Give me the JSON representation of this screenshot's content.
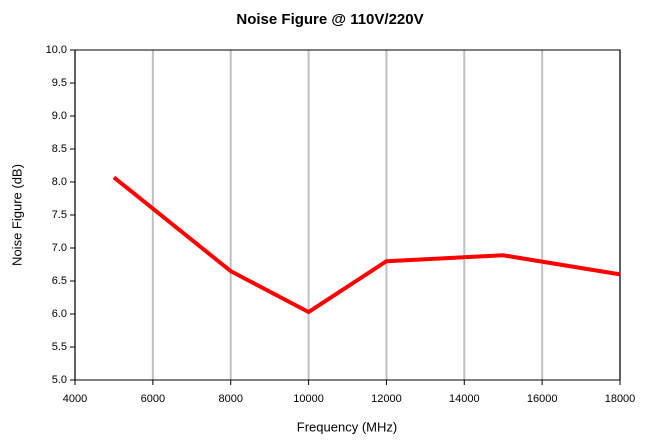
{
  "chart_data": {
    "type": "line",
    "title": "Noise Figure @ 110V/220V",
    "xlabel": "Frequency (MHz)",
    "ylabel": "Noise Figure (dB)",
    "x": [
      5000,
      8000,
      10000,
      12000,
      15000,
      18000
    ],
    "series": [
      {
        "color": "#ff0000",
        "values": [
          8.07,
          6.65,
          6.03,
          6.8,
          6.89,
          6.6
        ]
      }
    ],
    "xlim": [
      4000,
      18000
    ],
    "xticks": [
      4000,
      6000,
      8000,
      10000,
      12000,
      14000,
      16000,
      18000
    ],
    "ylim": [
      5,
      10
    ],
    "yticks": [
      {
        "value": 5,
        "label": "5.0"
      },
      {
        "value": 5.5,
        "label": "5.5"
      },
      {
        "value": 6,
        "label": "6.0"
      },
      {
        "value": 6.5,
        "label": "6.5"
      },
      {
        "value": 7,
        "label": "7.0"
      },
      {
        "value": 7.5,
        "label": "7.5"
      },
      {
        "value": 8,
        "label": "8.0"
      },
      {
        "value": 8.5,
        "label": "8.5"
      },
      {
        "value": 9,
        "label": "9.0"
      },
      {
        "value": 9.5,
        "label": "9.5"
      },
      {
        "value": 10,
        "label": "10.0"
      }
    ],
    "grid": "x"
  }
}
